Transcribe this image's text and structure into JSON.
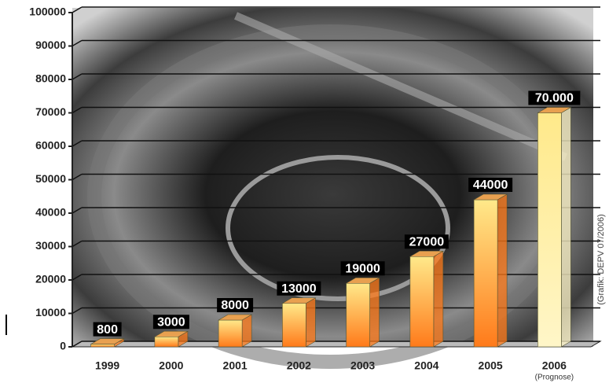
{
  "chart_data": {
    "type": "bar3d",
    "categories": [
      "1999",
      "2000",
      "2001",
      "2002",
      "2003",
      "2004",
      "2005",
      "2006"
    ],
    "values": [
      800,
      3000,
      8000,
      13000,
      19000,
      27000,
      44000,
      70000
    ],
    "value_labels": [
      "800",
      "3000",
      "8000",
      "13000",
      "19000",
      "27000",
      "44000",
      "70.000"
    ],
    "colors": [
      "#ff7a1a",
      "#ff7a1a",
      "#ff7a1a",
      "#ff7a1a",
      "#ff7a1a",
      "#ff7a1a",
      "#ff7a1a",
      "#fff6c8"
    ],
    "category_note": "(Prognose)",
    "source": "(Grafik: DEPV 07/2006)",
    "ylim": [
      0,
      100000
    ],
    "yticks": [
      0,
      10000,
      20000,
      30000,
      40000,
      50000,
      60000,
      70000,
      80000,
      90000,
      100000
    ],
    "grid": true
  }
}
